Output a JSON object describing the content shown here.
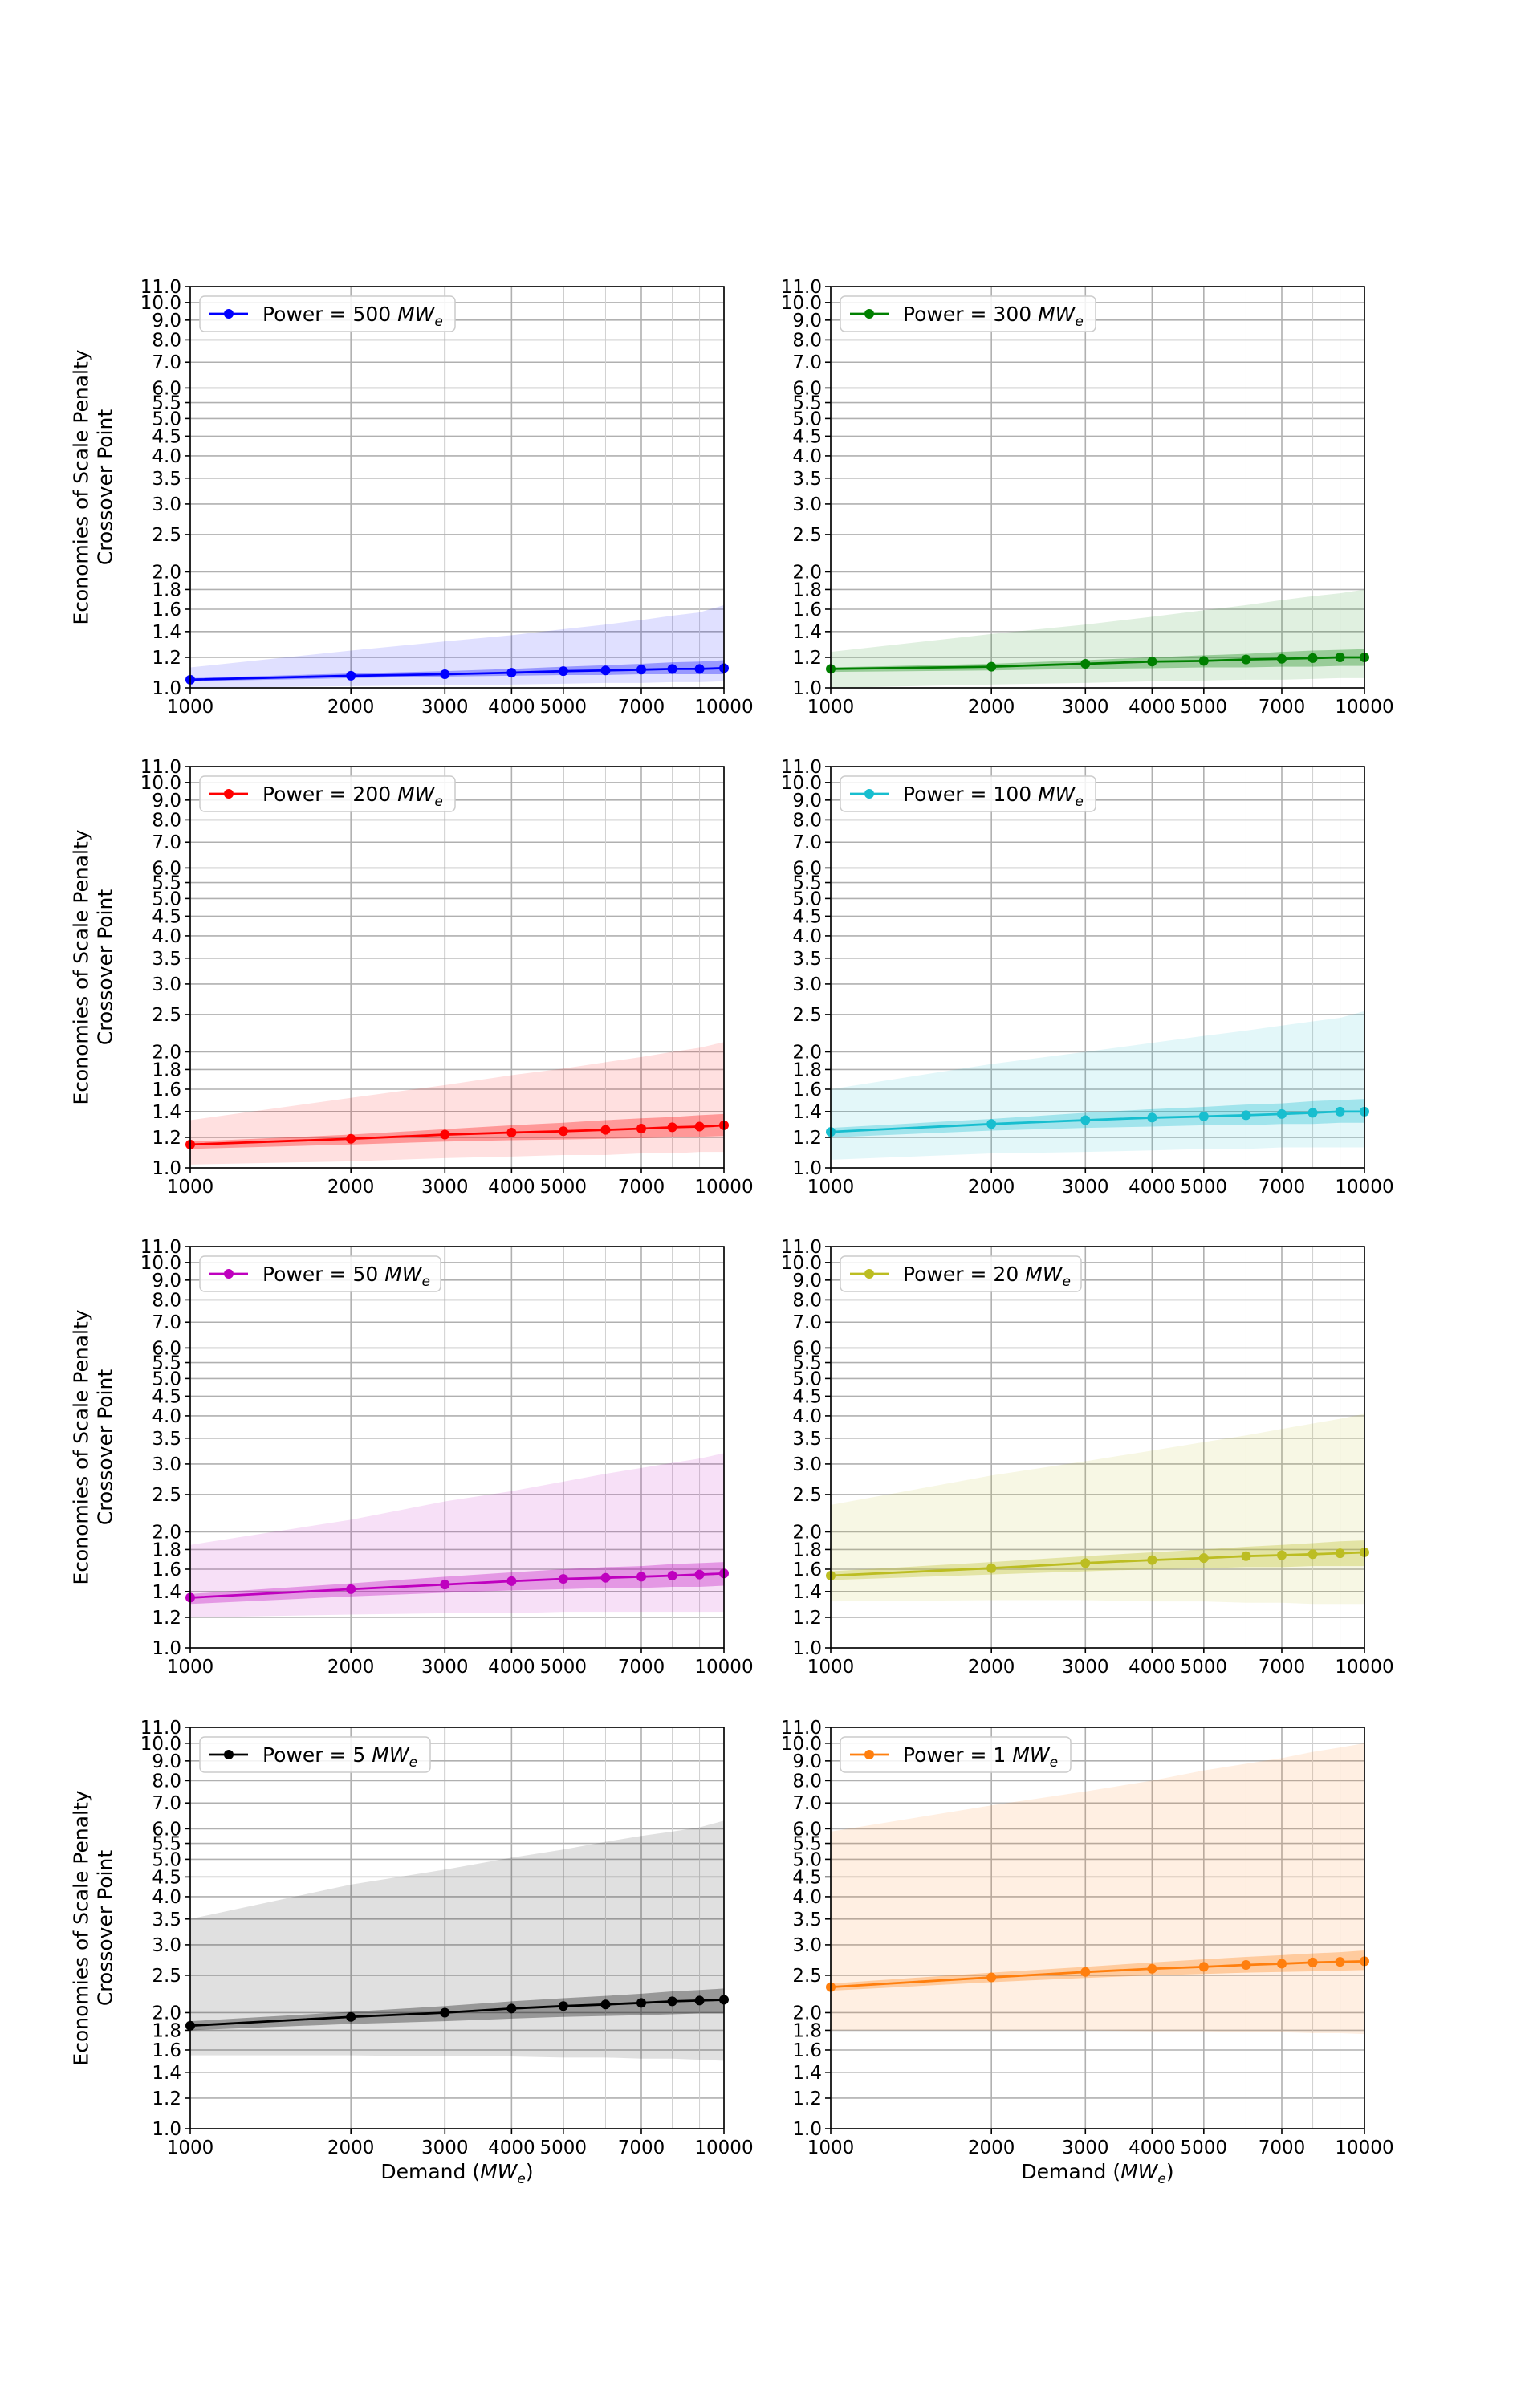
{
  "figure": {
    "ylabel": [
      "Economies of Scale Penalty",
      "Crossover Point"
    ],
    "xlabel_prefix": "Demand (",
    "xlabel_unit": "MW",
    "xlabel_sub": "e",
    "xlabel_suffix": ")"
  },
  "chart_data": [
    {
      "type": "line",
      "legend": {
        "prefix": "Power = ",
        "value": "500",
        "unit": "MW",
        "sub": "e"
      },
      "color": "#0000ff",
      "x_scale": "log",
      "y_scale": "log",
      "xlim": [
        1000,
        10000
      ],
      "ylim": [
        1.0,
        11.0
      ],
      "x": [
        1000,
        2000,
        3000,
        4000,
        5000,
        6000,
        7000,
        8000,
        9000,
        10000
      ],
      "y": [
        1.05,
        1.075,
        1.085,
        1.095,
        1.105,
        1.11,
        1.115,
        1.12,
        1.12,
        1.125
      ],
      "inner_band": {
        "lower": [
          1.04,
          1.06,
          1.07,
          1.075,
          1.08,
          1.08,
          1.085,
          1.085,
          1.085,
          1.085
        ],
        "upper": [
          1.06,
          1.09,
          1.105,
          1.12,
          1.135,
          1.145,
          1.155,
          1.165,
          1.17,
          1.18
        ]
      },
      "outer_band": {
        "lower": [
          1.0,
          1.01,
          1.015,
          1.02,
          1.025,
          1.03,
          1.03,
          1.035,
          1.035,
          1.04
        ],
        "upper": [
          1.13,
          1.25,
          1.32,
          1.37,
          1.42,
          1.46,
          1.5,
          1.54,
          1.57,
          1.64
        ]
      }
    },
    {
      "type": "line",
      "legend": {
        "prefix": "Power = ",
        "value": "300",
        "unit": "MW",
        "sub": "e"
      },
      "color": "#008000",
      "x_scale": "log",
      "y_scale": "log",
      "xlim": [
        1000,
        10000
      ],
      "ylim": [
        1.0,
        11.0
      ],
      "x": [
        1000,
        2000,
        3000,
        4000,
        5000,
        6000,
        7000,
        8000,
        9000,
        10000
      ],
      "y": [
        1.12,
        1.135,
        1.155,
        1.17,
        1.175,
        1.185,
        1.19,
        1.195,
        1.2,
        1.2
      ],
      "inner_band": {
        "lower": [
          1.1,
          1.11,
          1.12,
          1.125,
          1.13,
          1.13,
          1.135,
          1.135,
          1.14,
          1.14
        ],
        "upper": [
          1.13,
          1.155,
          1.18,
          1.2,
          1.215,
          1.225,
          1.24,
          1.25,
          1.255,
          1.26
        ]
      },
      "outer_band": {
        "lower": [
          1.0,
          1.02,
          1.03,
          1.04,
          1.045,
          1.05,
          1.05,
          1.055,
          1.06,
          1.06
        ],
        "upper": [
          1.24,
          1.38,
          1.46,
          1.53,
          1.59,
          1.64,
          1.69,
          1.73,
          1.76,
          1.8
        ]
      }
    },
    {
      "type": "line",
      "legend": {
        "prefix": "Power = ",
        "value": "200",
        "unit": "MW",
        "sub": "e"
      },
      "color": "#ff0000",
      "x_scale": "log",
      "y_scale": "log",
      "xlim": [
        1000,
        10000
      ],
      "ylim": [
        1.0,
        11.0
      ],
      "x": [
        1000,
        2000,
        3000,
        4000,
        5000,
        6000,
        7000,
        8000,
        9000,
        10000
      ],
      "y": [
        1.15,
        1.19,
        1.22,
        1.235,
        1.245,
        1.255,
        1.265,
        1.275,
        1.28,
        1.29
      ],
      "inner_band": {
        "lower": [
          1.12,
          1.15,
          1.17,
          1.18,
          1.185,
          1.19,
          1.195,
          1.2,
          1.205,
          1.21
        ],
        "upper": [
          1.17,
          1.22,
          1.26,
          1.29,
          1.31,
          1.33,
          1.345,
          1.355,
          1.37,
          1.38
        ]
      },
      "outer_band": {
        "lower": [
          1.02,
          1.04,
          1.06,
          1.07,
          1.08,
          1.08,
          1.09,
          1.09,
          1.1,
          1.1
        ],
        "upper": [
          1.33,
          1.52,
          1.64,
          1.74,
          1.81,
          1.88,
          1.94,
          2.0,
          2.05,
          2.12
        ]
      }
    },
    {
      "type": "line",
      "legend": {
        "prefix": "Power = ",
        "value": "100",
        "unit": "MW",
        "sub": "e"
      },
      "color": "#17becf",
      "x_scale": "log",
      "y_scale": "log",
      "xlim": [
        1000,
        10000
      ],
      "ylim": [
        1.0,
        11.0
      ],
      "x": [
        1000,
        2000,
        3000,
        4000,
        5000,
        6000,
        7000,
        8000,
        9000,
        10000
      ],
      "y": [
        1.24,
        1.3,
        1.33,
        1.35,
        1.36,
        1.37,
        1.38,
        1.39,
        1.4,
        1.4
      ],
      "inner_band": {
        "lower": [
          1.2,
          1.25,
          1.27,
          1.28,
          1.29,
          1.29,
          1.3,
          1.3,
          1.31,
          1.31
        ],
        "upper": [
          1.27,
          1.34,
          1.39,
          1.42,
          1.44,
          1.46,
          1.47,
          1.49,
          1.5,
          1.51
        ]
      },
      "outer_band": {
        "lower": [
          1.05,
          1.09,
          1.1,
          1.11,
          1.12,
          1.12,
          1.13,
          1.13,
          1.13,
          1.13
        ],
        "upper": [
          1.6,
          1.86,
          2.0,
          2.11,
          2.2,
          2.27,
          2.34,
          2.4,
          2.45,
          2.55
        ]
      }
    },
    {
      "type": "line",
      "legend": {
        "prefix": "Power = ",
        "value": "50",
        "unit": "MW",
        "sub": "e"
      },
      "color": "#bf00bf",
      "x_scale": "log",
      "y_scale": "log",
      "xlim": [
        1000,
        10000
      ],
      "ylim": [
        1.0,
        11.0
      ],
      "x": [
        1000,
        2000,
        3000,
        4000,
        5000,
        6000,
        7000,
        8000,
        9000,
        10000
      ],
      "y": [
        1.35,
        1.42,
        1.46,
        1.49,
        1.51,
        1.52,
        1.53,
        1.54,
        1.55,
        1.56
      ],
      "inner_band": {
        "lower": [
          1.3,
          1.36,
          1.39,
          1.41,
          1.42,
          1.43,
          1.43,
          1.44,
          1.44,
          1.45
        ],
        "upper": [
          1.38,
          1.47,
          1.53,
          1.57,
          1.6,
          1.62,
          1.63,
          1.65,
          1.66,
          1.67
        ]
      },
      "outer_band": {
        "lower": [
          1.2,
          1.22,
          1.23,
          1.23,
          1.24,
          1.24,
          1.24,
          1.24,
          1.24,
          1.24
        ],
        "upper": [
          1.85,
          2.15,
          2.4,
          2.55,
          2.7,
          2.83,
          2.93,
          3.02,
          3.1,
          3.2
        ]
      }
    },
    {
      "type": "line",
      "legend": {
        "prefix": "Power = ",
        "value": "20",
        "unit": "MW",
        "sub": "e"
      },
      "color": "#bcbd22",
      "x_scale": "log",
      "y_scale": "log",
      "xlim": [
        1000,
        10000
      ],
      "ylim": [
        1.0,
        11.0
      ],
      "x": [
        1000,
        2000,
        3000,
        4000,
        5000,
        6000,
        7000,
        8000,
        9000,
        10000
      ],
      "y": [
        1.54,
        1.61,
        1.66,
        1.69,
        1.71,
        1.73,
        1.74,
        1.75,
        1.76,
        1.77
      ],
      "inner_band": {
        "lower": [
          1.5,
          1.55,
          1.58,
          1.6,
          1.61,
          1.62,
          1.62,
          1.63,
          1.63,
          1.63
        ],
        "upper": [
          1.58,
          1.67,
          1.73,
          1.77,
          1.8,
          1.83,
          1.85,
          1.87,
          1.89,
          1.9
        ]
      },
      "outer_band": {
        "lower": [
          1.32,
          1.33,
          1.33,
          1.32,
          1.32,
          1.31,
          1.31,
          1.3,
          1.3,
          1.3
        ],
        "upper": [
          2.35,
          2.8,
          3.05,
          3.25,
          3.42,
          3.56,
          3.7,
          3.82,
          3.93,
          4.05
        ]
      }
    },
    {
      "type": "line",
      "legend": {
        "prefix": "Power = ",
        "value": "5",
        "unit": "MW",
        "sub": "e"
      },
      "color": "#000000",
      "x_scale": "log",
      "y_scale": "log",
      "xlim": [
        1000,
        10000
      ],
      "ylim": [
        1.0,
        11.0
      ],
      "x": [
        1000,
        2000,
        3000,
        4000,
        5000,
        6000,
        7000,
        8000,
        9000,
        10000
      ],
      "y": [
        1.85,
        1.95,
        2.0,
        2.05,
        2.08,
        2.1,
        2.12,
        2.14,
        2.15,
        2.16
      ],
      "inner_band": {
        "lower": [
          1.8,
          1.87,
          1.9,
          1.93,
          1.95,
          1.96,
          1.97,
          1.98,
          1.99,
          1.99
        ],
        "upper": [
          1.9,
          2.01,
          2.08,
          2.14,
          2.18,
          2.21,
          2.24,
          2.27,
          2.29,
          2.31
        ]
      },
      "outer_band": {
        "lower": [
          1.55,
          1.55,
          1.54,
          1.54,
          1.53,
          1.53,
          1.52,
          1.52,
          1.51,
          1.5
        ],
        "upper": [
          3.5,
          4.3,
          4.7,
          5.05,
          5.3,
          5.55,
          5.75,
          5.9,
          6.05,
          6.3
        ]
      }
    },
    {
      "type": "line",
      "legend": {
        "prefix": "Power = ",
        "value": "1",
        "unit": "MW",
        "sub": "e"
      },
      "color": "#ff7f0e",
      "x_scale": "log",
      "y_scale": "log",
      "xlim": [
        1000,
        10000
      ],
      "ylim": [
        1.0,
        11.0
      ],
      "x": [
        1000,
        2000,
        3000,
        4000,
        5000,
        6000,
        7000,
        8000,
        9000,
        10000
      ],
      "y": [
        2.33,
        2.47,
        2.55,
        2.6,
        2.63,
        2.66,
        2.68,
        2.7,
        2.71,
        2.72
      ],
      "inner_band": {
        "lower": [
          2.28,
          2.4,
          2.46,
          2.5,
          2.52,
          2.54,
          2.55,
          2.56,
          2.57,
          2.58
        ],
        "upper": [
          2.38,
          2.54,
          2.63,
          2.7,
          2.75,
          2.79,
          2.82,
          2.85,
          2.87,
          2.9
        ]
      },
      "outer_band": {
        "lower": [
          1.8,
          1.8,
          1.8,
          1.79,
          1.79,
          1.78,
          1.78,
          1.77,
          1.77,
          1.76
        ],
        "upper": [
          5.9,
          6.9,
          7.5,
          8.0,
          8.5,
          8.85,
          9.15,
          9.5,
          9.75,
          10.0
        ]
      }
    }
  ],
  "axes": {
    "y_ticks": [
      "1.0",
      "1.2",
      "1.4",
      "1.6",
      "1.8",
      "2.0",
      "2.5",
      "3.0",
      "3.5",
      "4.0",
      "4.5",
      "5.0",
      "5.5",
      "6.0",
      "7.0",
      "8.0",
      "9.0",
      "10.0",
      "11.0"
    ],
    "x_ticks": [
      "1000",
      "2000",
      "3000",
      "4000",
      "5000",
      "7000",
      "10000"
    ],
    "x_minor": [
      6000,
      8000,
      9000
    ]
  }
}
